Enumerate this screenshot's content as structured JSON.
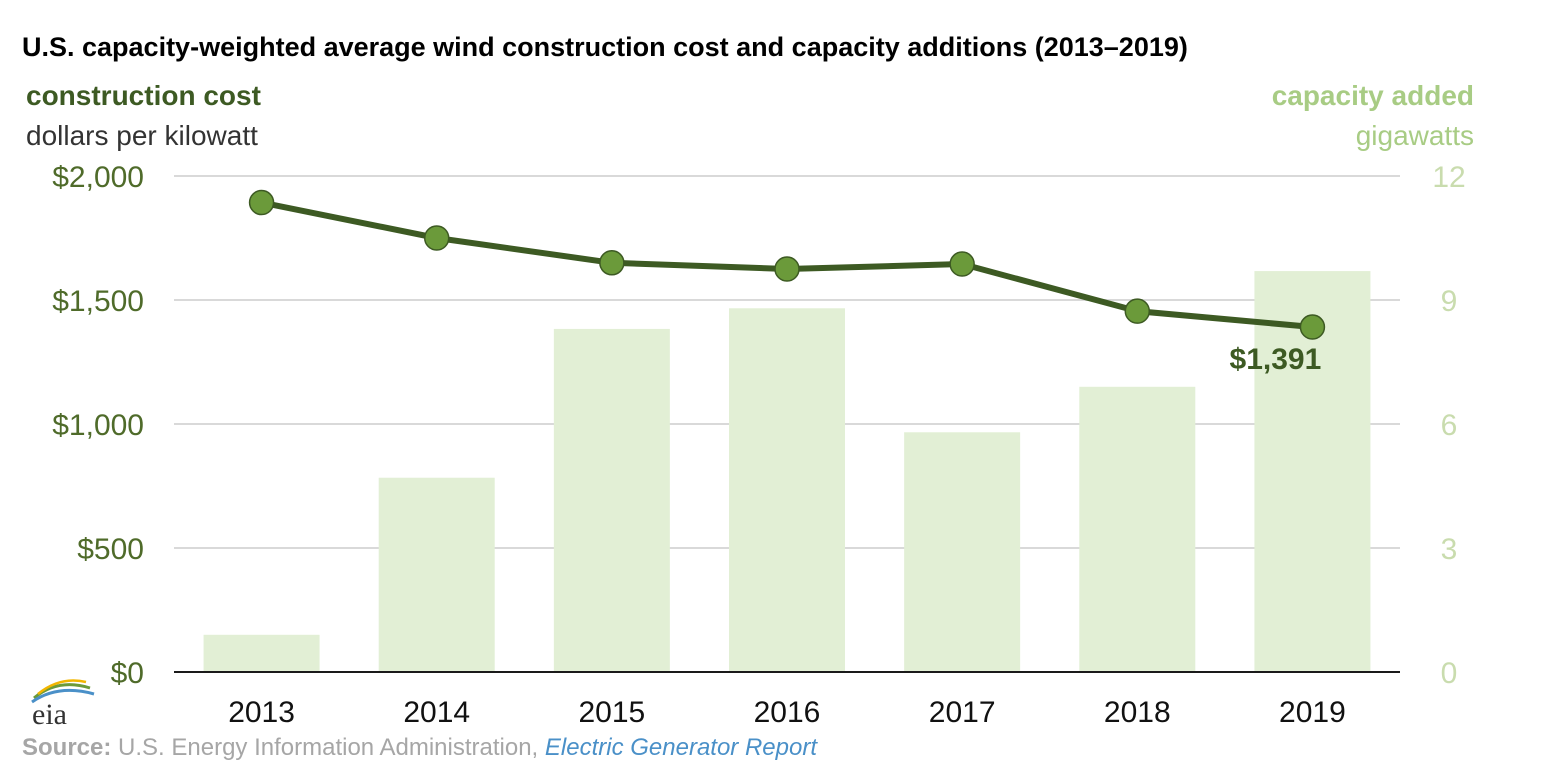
{
  "header": {
    "title": "U.S. capacity-weighted average wind construction cost and capacity additions (2013–2019)",
    "left_axis_title": "construction cost",
    "left_axis_unit": "dollars per kilowatt",
    "right_axis_title": "capacity added",
    "right_axis_unit": "gigawatts"
  },
  "footer": {
    "source_label": "Source:",
    "source_text": "U.S. Energy Information Administration,",
    "source_link": "Electric Generator Report",
    "logo_text": "eia"
  },
  "colors": {
    "line": "#3d5a23",
    "marker_fill": "#6b9a3a",
    "bar": "#e2efd5",
    "left_axis_text": "#4f6b2a",
    "right_axis_text": "#c9dcae",
    "right_title": "#a8cc84",
    "grid": "#d9d9d9",
    "source": "#a6a6a6",
    "link": "#4a90c8"
  },
  "chart_data": {
    "type": "bar",
    "categories": [
      "2013",
      "2014",
      "2015",
      "2016",
      "2017",
      "2018",
      "2019"
    ],
    "series": [
      {
        "name": "capacity added",
        "type": "bar",
        "axis": "right",
        "values": [
          0.9,
          4.7,
          8.3,
          8.8,
          5.8,
          6.9,
          9.7
        ]
      },
      {
        "name": "construction cost",
        "type": "line",
        "axis": "left",
        "values": [
          1893,
          1750,
          1650,
          1625,
          1645,
          1455,
          1391
        ]
      }
    ],
    "left_axis": {
      "ylim": [
        0,
        2000
      ],
      "ticks": [
        0,
        500,
        1000,
        1500,
        2000
      ],
      "tick_labels": [
        "$0",
        "$500",
        "$1,000",
        "$1,500",
        "$2,000"
      ]
    },
    "right_axis": {
      "ylim": [
        0,
        12
      ],
      "ticks": [
        0,
        3,
        6,
        9,
        12
      ],
      "tick_labels": [
        "0",
        "3",
        "6",
        "9",
        "12"
      ]
    },
    "annotations": [
      {
        "category": "2019",
        "series": "construction cost",
        "text": "$1,391"
      }
    ],
    "grid": true
  }
}
